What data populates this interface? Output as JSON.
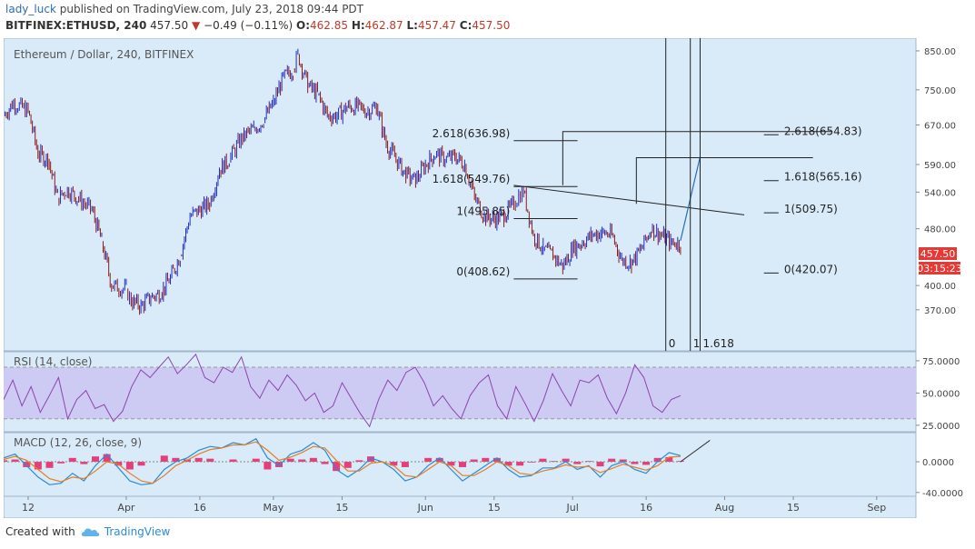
{
  "header": {
    "author": "lady_luck",
    "published_text": "published on TradingView.com, July 23, 2018 09:44 PDT",
    "symbol": "BITFINEX:ETHUSD, 240",
    "last": "457.50",
    "change": "−0.49 (−0.11%)",
    "o_label": "O:",
    "o_value": "462.85",
    "h_label": "H:",
    "h_value": "462.87",
    "l_label": "L:",
    "l_value": "457.47",
    "c_label": "C:",
    "c_value": "457.50"
  },
  "chart_title": "Ethereum / Dollar, 240, BITFINEX",
  "price_badge": "457.50",
  "time_badge": "03:15:23",
  "colors": {
    "pane_bg": "#d9eaf9",
    "up_candle": "#1f2cc7",
    "down_candle": "#8b1a1a",
    "rsi_line": "#8e44ad",
    "rsi_band": "#cdcaf3",
    "macd_line": "#2a8bd8",
    "signal_line": "#e67e22",
    "histogram": "#e91e63",
    "badge_red": "#e53935"
  },
  "footer": {
    "created_with": "Created with",
    "brand": "TradingView",
    "brand_icon": "tradingview-cloud-icon"
  },
  "chart_data": [
    {
      "type": "candlestick",
      "title": "Ethereum / Dollar, 240, BITFINEX",
      "y_scale": "log",
      "ylim": [
        330,
        870
      ],
      "y_ticks": [
        850,
        750,
        670,
        590,
        540,
        480,
        400,
        370
      ],
      "y_tick_labels": [
        "850.00",
        "750.00",
        "670.00",
        "590.00",
        "540.00",
        "480.00",
        "400.00",
        "370.00"
      ],
      "x_tick_labels": [
        "12",
        "Apr",
        "16",
        "May",
        "15",
        "Jun",
        "15",
        "Jul",
        "16",
        "Aug",
        "15",
        "Sep"
      ],
      "x_tick_dates": [
        "2018-03-12",
        "2018-04-01",
        "2018-04-16",
        "2018-05-01",
        "2018-05-15",
        "2018-06-01",
        "2018-06-15",
        "2018-07-01",
        "2018-07-16",
        "2018-08-01",
        "2018-08-15",
        "2018-09-01"
      ],
      "x_range": [
        "2018-03-07",
        "2018-09-09"
      ],
      "price_path": [
        [
          "2018-03-07",
          690
        ],
        [
          "2018-03-09",
          720
        ],
        [
          "2018-03-12",
          700
        ],
        [
          "2018-03-14",
          610
        ],
        [
          "2018-03-16",
          600
        ],
        [
          "2018-03-18",
          530
        ],
        [
          "2018-03-20",
          545
        ],
        [
          "2018-03-22",
          530
        ],
        [
          "2018-03-25",
          510
        ],
        [
          "2018-03-27",
          460
        ],
        [
          "2018-03-29",
          400
        ],
        [
          "2018-04-01",
          395
        ],
        [
          "2018-04-02",
          380
        ],
        [
          "2018-04-04",
          375
        ],
        [
          "2018-04-06",
          385
        ],
        [
          "2018-04-08",
          390
        ],
        [
          "2018-04-10",
          410
        ],
        [
          "2018-04-12",
          440
        ],
        [
          "2018-04-14",
          500
        ],
        [
          "2018-04-16",
          510
        ],
        [
          "2018-04-18",
          520
        ],
        [
          "2018-04-20",
          580
        ],
        [
          "2018-04-22",
          600
        ],
        [
          "2018-04-25",
          650
        ],
        [
          "2018-04-27",
          660
        ],
        [
          "2018-04-29",
          680
        ],
        [
          "2018-05-01",
          720
        ],
        [
          "2018-05-03",
          780
        ],
        [
          "2018-05-05",
          800
        ],
        [
          "2018-05-06",
          840
        ],
        [
          "2018-05-08",
          760
        ],
        [
          "2018-05-10",
          740
        ],
        [
          "2018-05-12",
          690
        ],
        [
          "2018-05-14",
          690
        ],
        [
          "2018-05-16",
          710
        ],
        [
          "2018-05-18",
          710
        ],
        [
          "2018-05-20",
          700
        ],
        [
          "2018-05-22",
          710
        ],
        [
          "2018-05-24",
          630
        ],
        [
          "2018-05-26",
          600
        ],
        [
          "2018-05-28",
          570
        ],
        [
          "2018-05-30",
          560
        ],
        [
          "2018-06-01",
          590
        ],
        [
          "2018-06-03",
          610
        ],
        [
          "2018-06-05",
          600
        ],
        [
          "2018-06-07",
          605
        ],
        [
          "2018-06-09",
          590
        ],
        [
          "2018-06-11",
          530
        ],
        [
          "2018-06-13",
          500
        ],
        [
          "2018-06-15",
          495
        ],
        [
          "2018-06-17",
          500
        ],
        [
          "2018-06-19",
          520
        ],
        [
          "2018-06-20",
          535
        ],
        [
          "2018-06-21",
          540
        ],
        [
          "2018-06-23",
          470
        ],
        [
          "2018-06-25",
          450
        ],
        [
          "2018-06-27",
          440
        ],
        [
          "2018-06-29",
          425
        ],
        [
          "2018-07-01",
          450
        ],
        [
          "2018-07-03",
          460
        ],
        [
          "2018-07-05",
          470
        ],
        [
          "2018-07-07",
          475
        ],
        [
          "2018-07-09",
          470
        ],
        [
          "2018-07-11",
          435
        ],
        [
          "2018-07-13",
          430
        ],
        [
          "2018-07-15",
          450
        ],
        [
          "2018-07-17",
          480
        ],
        [
          "2018-07-19",
          470
        ],
        [
          "2018-07-21",
          460
        ],
        [
          "2018-07-23",
          457.5
        ]
      ],
      "fibonacci_left": [
        {
          "label": "2.618(636.98)",
          "value": 636.98
        },
        {
          "label": "1.618(549.76)",
          "value": 549.76
        },
        {
          "label": "1(495.85)",
          "value": 495.85
        },
        {
          "label": "0(408.62)",
          "value": 408.62
        }
      ],
      "fibonacci_right": [
        {
          "label": "2.618(654.83)",
          "value": 654.83
        },
        {
          "label": "1.618(565.16)",
          "value": 565.16
        },
        {
          "label": "1(509.75)",
          "value": 509.75
        },
        {
          "label": "0(420.07)",
          "value": 420.07
        }
      ],
      "fib_time_zones": [
        "0",
        "1",
        "1.618"
      ],
      "last_price": 457.5
    },
    {
      "type": "line",
      "title": "RSI (14, close)",
      "ylim": [
        20,
        82
      ],
      "y_ticks": [
        75,
        50,
        25
      ],
      "y_tick_labels": [
        "75.0000",
        "50.0000",
        "25.0000"
      ],
      "band": [
        30,
        70
      ],
      "series": [
        {
          "name": "RSI",
          "values": [
            45,
            60,
            40,
            55,
            35,
            48,
            62,
            30,
            45,
            52,
            38,
            41,
            28,
            36,
            55,
            68,
            62,
            70,
            78,
            65,
            72,
            80,
            62,
            58,
            70,
            66,
            78,
            55,
            46,
            60,
            52,
            64,
            56,
            44,
            50,
            35,
            40,
            58,
            46,
            34,
            24,
            45,
            60,
            52,
            66,
            70,
            58,
            40,
            48,
            38,
            30,
            48,
            58,
            64,
            40,
            30,
            55,
            42,
            28,
            44,
            65,
            52,
            40,
            60,
            58,
            64,
            46,
            34,
            50,
            72,
            62,
            40,
            35,
            45,
            48
          ]
        }
      ]
    },
    {
      "type": "line",
      "title": "MACD (12, 26, close, 9)",
      "ylim": [
        -45,
        38
      ],
      "y_ticks": [
        0,
        -40
      ],
      "y_tick_labels": [
        "0.0000",
        "-40.0000"
      ],
      "series": [
        {
          "name": "MACD",
          "values": [
            5,
            10,
            -5,
            -20,
            -30,
            -28,
            -15,
            -25,
            -5,
            10,
            -8,
            -25,
            -30,
            -28,
            -10,
            0,
            5,
            15,
            20,
            18,
            25,
            22,
            30,
            5,
            -5,
            10,
            15,
            25,
            15,
            -10,
            -20,
            -10,
            5,
            0,
            -10,
            -25,
            -20,
            -5,
            5,
            -10,
            -25,
            -15,
            -5,
            5,
            -10,
            -20,
            -18,
            -8,
            -8,
            0,
            -10,
            -5,
            -20,
            -5,
            0,
            -10,
            -15,
            0,
            12,
            8
          ]
        },
        {
          "name": "Signal",
          "values": [
            3,
            7,
            2,
            -10,
            -22,
            -26,
            -20,
            -22,
            -12,
            0,
            -3,
            -15,
            -25,
            -28,
            -18,
            -5,
            2,
            10,
            16,
            18,
            22,
            22,
            26,
            15,
            2,
            6,
            12,
            20,
            18,
            2,
            -12,
            -12,
            -2,
            0,
            -5,
            -18,
            -20,
            -10,
            0,
            -5,
            -18,
            -18,
            -10,
            0,
            -5,
            -15,
            -17,
            -12,
            -9,
            -4,
            -7,
            -6,
            -14,
            -9,
            -3,
            -7,
            -11,
            -5,
            6,
            7
          ]
        }
      ]
    }
  ]
}
